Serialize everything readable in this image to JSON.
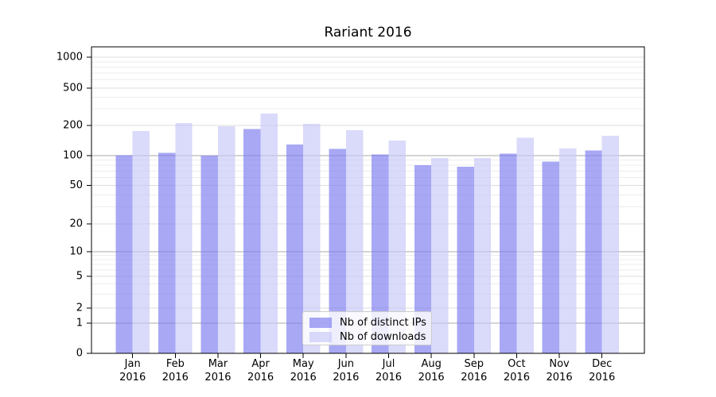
{
  "chart_data": {
    "type": "bar",
    "title": "Rariant 2016",
    "categories": [
      "Jan",
      "Feb",
      "Mar",
      "Apr",
      "May",
      "Jun",
      "Jul",
      "Aug",
      "Sep",
      "Oct",
      "Nov",
      "Dec"
    ],
    "year_label": "2016",
    "series": [
      {
        "name": "Nb of distinct IPs",
        "color": "#7979f0",
        "values": [
          101,
          107,
          100,
          185,
          129,
          117,
          103,
          80,
          77,
          105,
          87,
          113
        ]
      },
      {
        "name": "Nb of downloads",
        "color": "#c6c6f7",
        "values": [
          176,
          213,
          197,
          267,
          208,
          180,
          141,
          95,
          95,
          151,
          118,
          158
        ]
      }
    ],
    "yaxis": {
      "scale": "log-like",
      "tick_labels": [
        "1000",
        "500",
        "200",
        "100",
        "50",
        "20",
        "10",
        "5",
        "2",
        "1",
        "0"
      ],
      "tick_values": [
        1000,
        500,
        200,
        100,
        50,
        20,
        10,
        5,
        2,
        1,
        0
      ]
    },
    "xlabel": "",
    "ylabel": "",
    "grid": "both",
    "legend_position": "lower-center"
  },
  "colors": {
    "bar_ips": "#7979f0",
    "bar_downloads": "#c6c6f7",
    "grid_decade": "#a9a9a9",
    "grid_major": "#dcdcdc",
    "grid_minor": "#ededed",
    "axis": "#000000"
  }
}
